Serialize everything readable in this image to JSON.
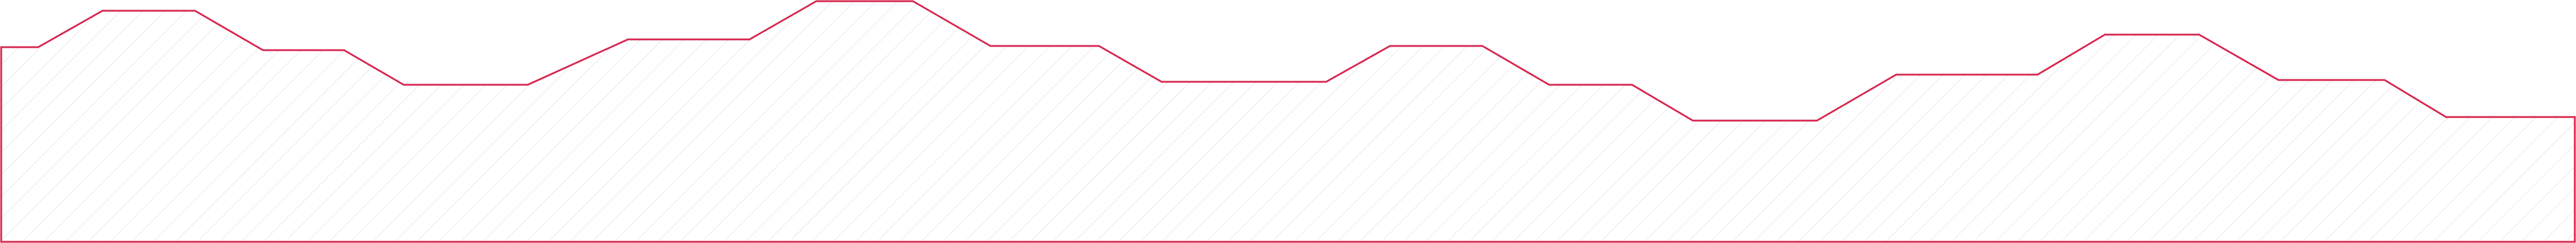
{
  "graphic": {
    "outline_color": "#d7264f",
    "hatch_color": "#b8b8c0"
  }
}
